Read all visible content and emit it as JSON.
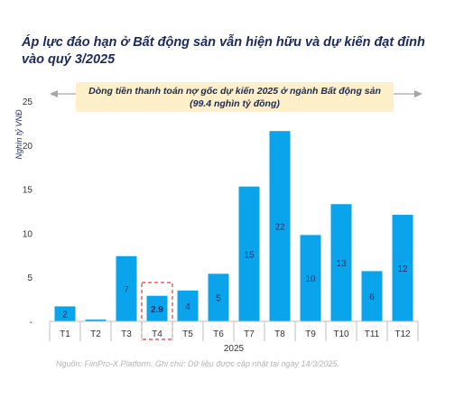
{
  "title": "Áp lực đáo hạn ở Bất động sản vẫn hiện hữu và dự kiến đạt đỉnh vào quý 3/2025",
  "source_note": "Nguồn: FiinPro-X Platform. Ghi chú: Dữ liệu được cập nhật tại ngày 14/3/2025.",
  "annotation": {
    "line1": "Dòng tiền thanh toán nợ gốc dự kiến 2025 ở ngành Bất động sản",
    "line2": "(99.4 nghìn tỷ đồng)"
  },
  "colors": {
    "bar": "#0aa4ec",
    "highlight_border": "#e23b3b",
    "banner": "#fdefc8",
    "title": "#1b2a5c"
  },
  "chart_data": {
    "type": "bar",
    "title": "",
    "xlabel": "2025",
    "ylabel": "Nghìn tỷ VNĐ",
    "ylim": [
      0,
      25
    ],
    "yticks": [
      "-",
      "5",
      "10",
      "15",
      "20",
      "25"
    ],
    "categories": [
      "T1",
      "T2",
      "T3",
      "T4",
      "T5",
      "T6",
      "T7",
      "T8",
      "T9",
      "T10",
      "T11",
      "T12"
    ],
    "values": [
      1.7,
      0.2,
      7.4,
      2.9,
      3.5,
      5.4,
      15.3,
      21.6,
      9.8,
      13.3,
      5.7,
      12.1
    ],
    "data_labels": [
      "2",
      "",
      "7",
      "2.9",
      "4",
      "5",
      "15",
      "22",
      "10",
      "13",
      "6",
      "12"
    ],
    "highlight_index": 3,
    "grid": false
  }
}
